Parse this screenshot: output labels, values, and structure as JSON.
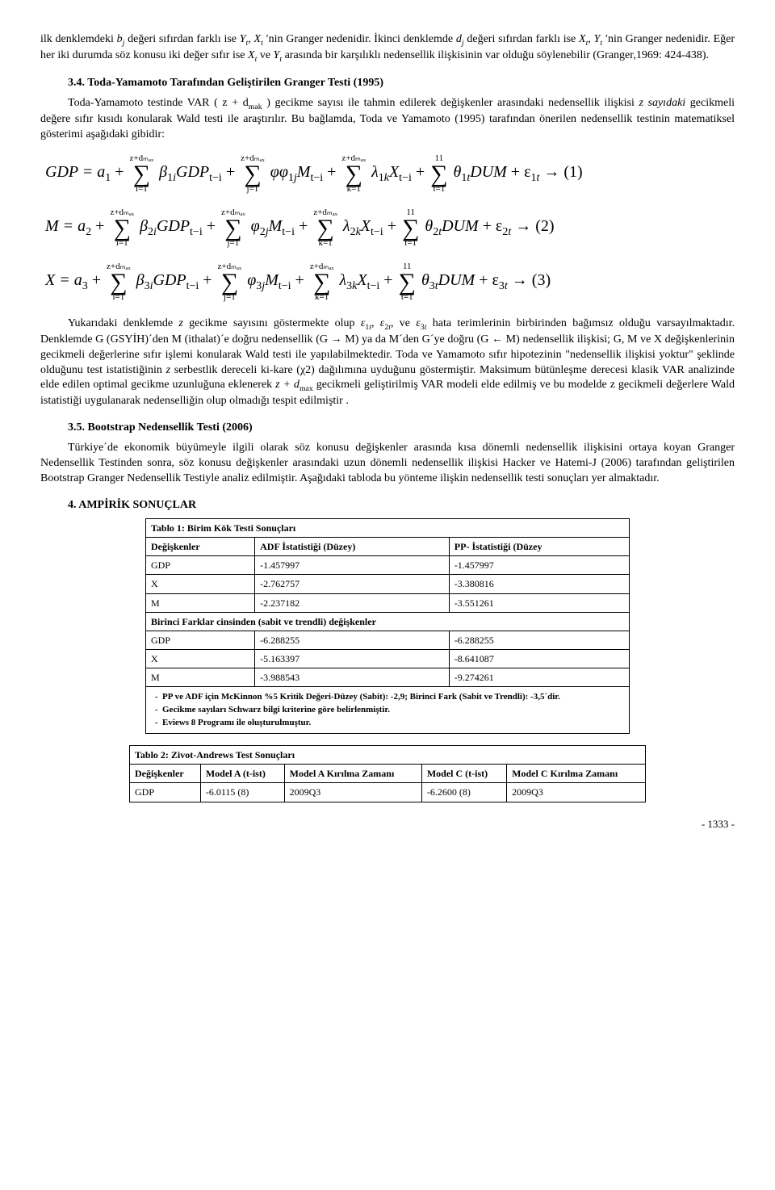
{
  "para1_a": "ilk denklemdeki ",
  "sym_bj": "b",
  "para1_b": " değeri sıfırdan farklı ise ",
  "sym_Yt": "Y",
  "para1_c": ", ",
  "sym_Xt": "X",
  "para1_d": " ′nin Granger nedenidir. İkinci denklemde ",
  "sym_dj": "d",
  "para1_e": " değeri sıfırdan farklı ise ",
  "para1_f": ", ",
  "para1_g": " ′nin Granger nedenidir. Eğer her iki durumda söz konusu iki değer sıfır ise ",
  "para1_h": " ve ",
  "para1_i": " arasında bir karşılıklı nedensellik ilişkisinin var olduğu söylenebilir (Granger,1969: 424-438).",
  "sec34_title": "3.4.  Toda-Yamamoto Tarafından Geliştirilen Granger Testi (1995)",
  "sec34_p1_a": "Toda-Yamamoto testinde VAR ",
  "sec34_p1_paren": "( z + d",
  "sec34_p1_mak": "mak",
  "sec34_p1_paren2": " )",
  "sec34_p1_b": " gecikme sayısı ile tahmin edilerek değişkenler arasındaki nedensellik ilişkisi ",
  "sec34_p1_c": "z sayıdaki",
  "sec34_p1_d": " gecikmeli değere sıfır kısıdı konularak Wald testi ile araştırılır. Bu bağlamda, Toda ve Yamamoto (1995) tarafından önerilen nedensellik testinin matematiksel gösterimi aşağıdaki gibidir:",
  "eq1_lhs": "GDP = a",
  "eq1_idx": "1",
  "eq_plus": " + ",
  "sum_top": "z+dₘₐₓ",
  "sum_top11": "11",
  "sum_bot_i": "i=1",
  "sum_bot_j": "j=1",
  "sum_bot_k": "k=1",
  "sum_bot_t": "t=1",
  "eq1_t1": "β",
  "eq1_t1b": "GDP",
  "eq_ti": "t−i",
  "eq1_t2": "φφ",
  "eq1_t2b": "M",
  "eq1_t3": "λ",
  "eq1_t3b": "X",
  "eq1_t4": "θ",
  "eq1_t4b": "DUM",
  "eq1_end": " + ε",
  "eq1_arrow": " → (1)",
  "eq2_lhs": "M = a",
  "eq2_idx": "2",
  "eq2_t2": "φ",
  "eq2_arrow": " → (2)",
  "eq3_lhs": "X = a",
  "eq3_idx": "3",
  "eq3_arrow": " → (3)",
  "sec34_p2_a": "Yukarıdaki denklemde ",
  "sec34_p2_b": "z",
  "sec34_p2_c": " gecikme sayısını göstermekte olup ",
  "sec34_p2_d": ", ve ",
  "sec34_p2_e": " hata terimlerinin birbirinden bağımsız olduğu varsayılmaktadır. Denklemde G (GSYİH)´den M (ithalat)´e doğru nedensellik ",
  "sec34_p2_f": "(G → M)",
  "sec34_p2_g": " ya da M´den G´ye doğru ",
  "sec34_p2_h": "(G ← M)",
  "sec34_p2_i": " nedensellik ilişkisi; G, M ve X değişkenlerinin gecikmeli değerlerine sıfır işlemi konularak Wald testi ile yapılabilmektedir. Toda ve Yamamoto sıfır hipotezinin \"nedensellik ilişkisi yoktur\" şeklinde olduğunu test istatistiğinin ",
  "sec34_p2_j": "z",
  "sec34_p2_k": " serbestlik dereceli ki-kare (χ2) dağılımına uyduğunu göstermiştir. Maksimum bütünleşme derecesi klasik VAR analizinde elde edilen optimal gecikme uzunluğuna eklenerek ",
  "sec34_p2_l": "z + d",
  "sec34_p2_m": " gecikmeli geliştirilmiş VAR modeli elde edilmiş ve bu modelde z gecikmeli değerlere Wald istatistiği uygulanarak nedenselliğin olup olmadığı tespit edilmiştir .",
  "sec35_title": "3.5.  Bootstrap Nedensellik Testi (2006)",
  "sec35_p1": "Türkiye´de ekonomik büyümeyle ilgili olarak söz konusu değişkenler arasında kısa dönemli nedensellik ilişkisini ortaya koyan Granger Nedensellik Testinden sonra, söz konusu değişkenler arasındaki uzun dönemli nedensellik ilişkisi Hacker ve Hatemi-J (2006) tarafından geliştirilen Bootstrap Granger Nedensellik Testiyle analiz edilmiştir. Aşağıdaki tabloda bu yönteme ilişkin nedensellik testi sonuçları yer almaktadır.",
  "sec4_title": "4.   AMPİRİK SONUÇLAR",
  "t1_caption": "Tablo 1: Birim Kök Testi Sonuçları",
  "t1_h1": "Değişkenler",
  "t1_h2": "ADF İstatistiği (Düzey)",
  "t1_h3": "PP- İstatistiği (Düzey",
  "t1_r1c1": "GDP",
  "t1_r1c2": "-1.457997",
  "t1_r1c3": "-1.457997",
  "t1_r2c1": "X",
  "t1_r2c2": "-2.762757",
  "t1_r2c3": "-3.380816",
  "t1_r3c1": "M",
  "t1_r3c2": "-2.237182",
  "t1_r3c3": "-3.551261",
  "t1_sub": "Birinci Farklar cinsinden (sabit ve trendli) değişkenler",
  "t1_r4c1": "GDP",
  "t1_r4c2": "-6.288255",
  "t1_r4c3": "-6.288255",
  "t1_r5c1": "X",
  "t1_r5c2": "-5.163397",
  "t1_r5c3": "-8.641087",
  "t1_r6c1": "M",
  "t1_r6c2": "-3.988543",
  "t1_r6c3": "-9.274261",
  "t1_n1": "PP ve ADF için McKinnon %5 Kritik Değeri-Düzey (Sabit): -2,9; Birinci Fark (Sabit ve Trendli): -3,5´dir.",
  "t1_n2": "Gecikme sayıları Schwarz bilgi kriterine göre belirlenmiştir.",
  "t1_n3": "Eviews 8 Programı ile oluşturulmuştur.",
  "t2_caption": "Tablo 2: Zivot-Andrews Test Sonuçları",
  "t2_h1": "Değişkenler",
  "t2_h2": "Model A (t-ist)",
  "t2_h3": "Model A Kırılma Zamanı",
  "t2_h4": "Model C (t-ist)",
  "t2_h5": "Model C Kırılma Zamanı",
  "t2_r1c1": "GDP",
  "t2_r1c2": "-6.0115 (8)",
  "t2_r1c3": "2009Q3",
  "t2_r1c4": "-6.2600 (8)",
  "t2_r1c5": "2009Q3",
  "page_num": "- 1333 -"
}
